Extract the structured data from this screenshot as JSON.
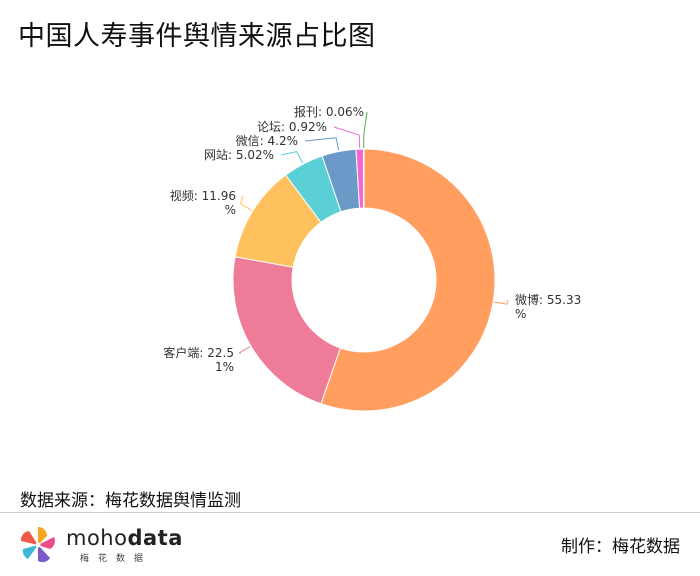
{
  "title": "中国人寿事件舆情来源占比图",
  "source_text": "数据来源：梅花数据舆情监测",
  "maker_text": "制作：梅花数据",
  "logo": {
    "word_light": "moho",
    "word_bold": "data",
    "sub": "梅花数据"
  },
  "chart_data": {
    "type": "pie",
    "variant": "donut",
    "title": "中国人寿事件舆情来源占比图",
    "unit": "%",
    "slices": [
      {
        "name": "微博",
        "value": 55.33,
        "color": "#FF9E5E",
        "label_lines": [
          "微博: 55.33",
          "%"
        ]
      },
      {
        "name": "客户端",
        "value": 22.51,
        "color": "#EE7C99",
        "label_lines": [
          "客户端: 22.5",
          "1%"
        ]
      },
      {
        "name": "视频",
        "value": 11.96,
        "color": "#FFC15E",
        "label_lines": [
          "视频: 11.96",
          "%"
        ]
      },
      {
        "name": "网站",
        "value": 5.02,
        "color": "#5ACFD6",
        "label_lines": [
          "网站: 5.02%"
        ]
      },
      {
        "name": "微信",
        "value": 4.2,
        "color": "#6B9AC8",
        "label_lines": [
          "微信: 4.2%"
        ]
      },
      {
        "name": "论坛",
        "value": 0.92,
        "color": "#F266D8",
        "label_lines": [
          "论坛: 0.92%"
        ]
      },
      {
        "name": "报刊",
        "value": 0.06,
        "color": "#4CAF50",
        "label_lines": [
          "报刊: 0.06%"
        ]
      }
    ]
  }
}
